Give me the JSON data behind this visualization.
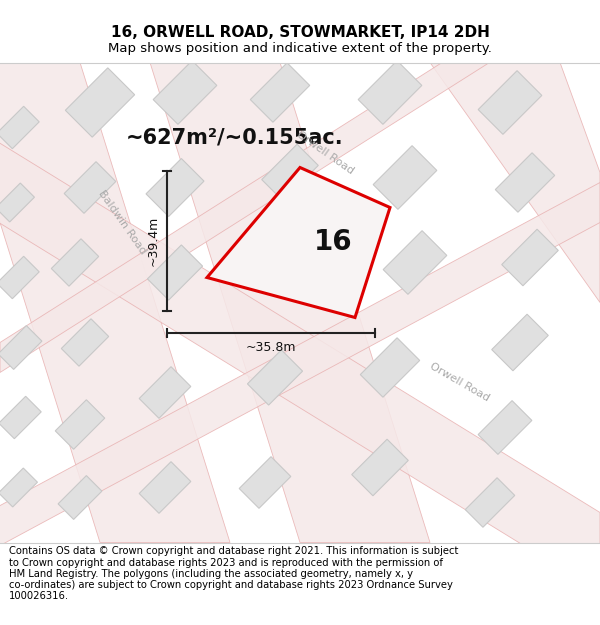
{
  "title": "16, ORWELL ROAD, STOWMARKET, IP14 2DH",
  "subtitle": "Map shows position and indicative extent of the property.",
  "area_text": "~627m²/~0.155ac.",
  "width_label": "~35.8m",
  "height_label": "~39.4m",
  "property_number": "16",
  "map_bg": "#eeeded",
  "title_fontsize": 11,
  "subtitle_fontsize": 9.5,
  "footer_fontsize": 7.2,
  "road_fill": "#f5e8e8",
  "road_edge": "#e8b0b0",
  "road_stripe": "#f0d0d0",
  "building_fill": "#e0e0e0",
  "building_edge": "#c8c8c8",
  "property_fill": "#f8f4f4",
  "property_edge": "#dd0000",
  "dim_color": "#222222",
  "road_label_color": "#aaaaaa",
  "footer_lines": [
    "Contains OS data © Crown copyright and database right 2021. This information is subject",
    "to Crown copyright and database rights 2023 and is reproduced with the permission of",
    "HM Land Registry. The polygons (including the associated geometry, namely x, y",
    "co-ordinates) are subject to Crown copyright and database rights 2023 Ordnance Survey",
    "100026316."
  ]
}
